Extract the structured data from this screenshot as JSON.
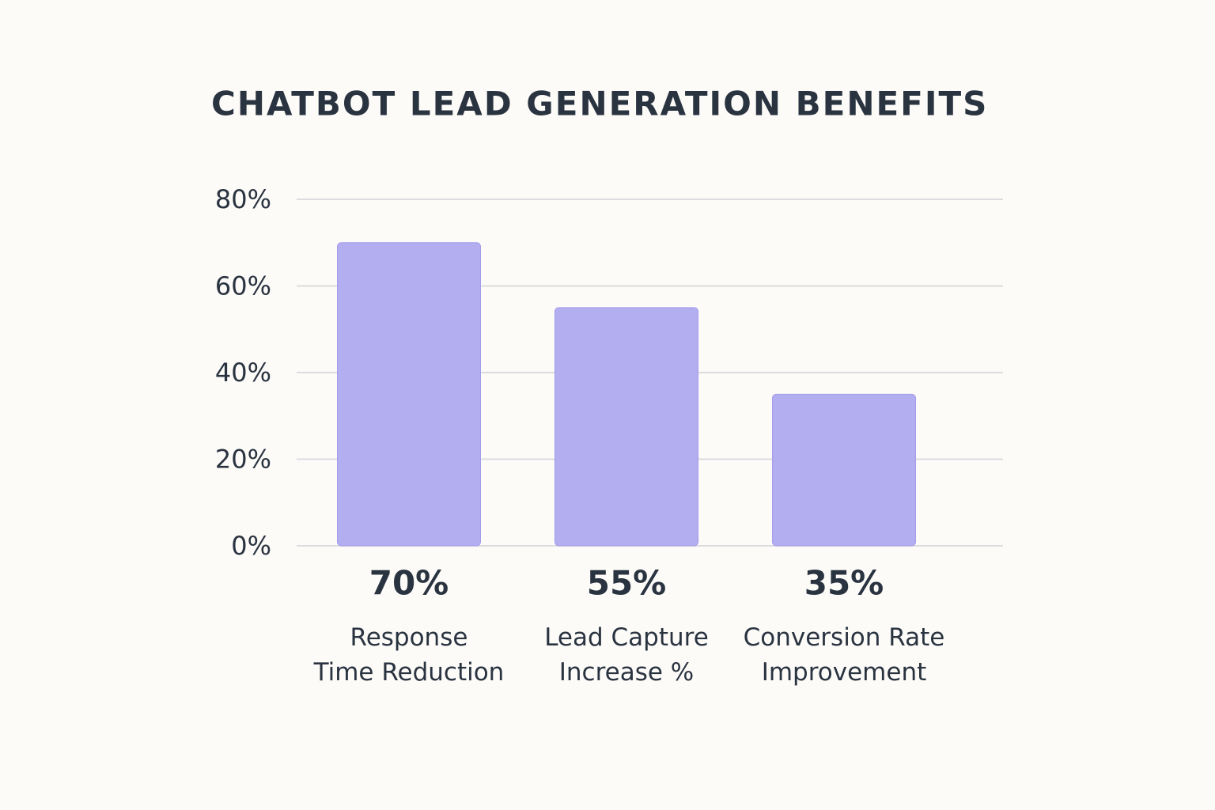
{
  "chart_data": {
    "type": "bar",
    "title": "CHATBOT LEAD GENERATION BENEFITS",
    "categories": [
      "Response\nTime Reduction",
      "Lead Capture\nIncrease %",
      "Conversion Rate\nImprovement"
    ],
    "values": [
      70,
      55,
      35
    ],
    "value_labels": [
      "70%",
      "55%",
      "35%"
    ],
    "color": "#b3aef0",
    "ylim": [
      0,
      80
    ],
    "yticks": [
      {
        "value": 0,
        "label": "0%"
      },
      {
        "value": 20,
        "label": "20%"
      },
      {
        "value": 40,
        "label": "40%"
      },
      {
        "value": 60,
        "label": "60%"
      },
      {
        "value": 80,
        "label": "80%"
      }
    ],
    "grid": true
  }
}
